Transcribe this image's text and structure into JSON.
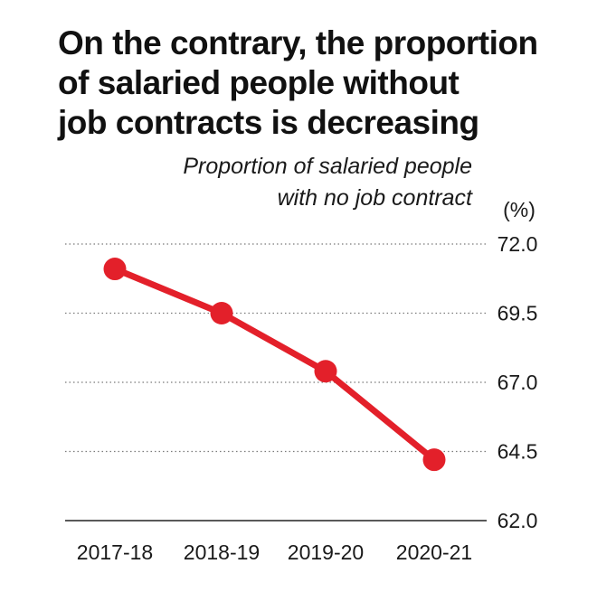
{
  "title": {
    "line1": "On the contrary, the proportion",
    "line2": "of salaried people without",
    "line3": "job contracts is decreasing"
  },
  "subtitle": {
    "line1": "Proportion of salaried people",
    "line2": "with no job contract"
  },
  "colors": {
    "series": "#e3202a",
    "grid": "#7a7a7a",
    "baseline": "#222222"
  },
  "chart_data": {
    "type": "line",
    "categories": [
      "2017-18",
      "2018-19",
      "2019-20",
      "2020-21"
    ],
    "series": [
      {
        "values": [
          71.1,
          69.5,
          67.4,
          64.2
        ]
      }
    ],
    "y_unit": "(%)",
    "y_ticks": [
      "72.0",
      "69.5",
      "67.0",
      "64.5",
      "62.0"
    ],
    "ylim": [
      62.0,
      72.0
    ],
    "grid": "dotted horizontal",
    "legend": "none"
  }
}
